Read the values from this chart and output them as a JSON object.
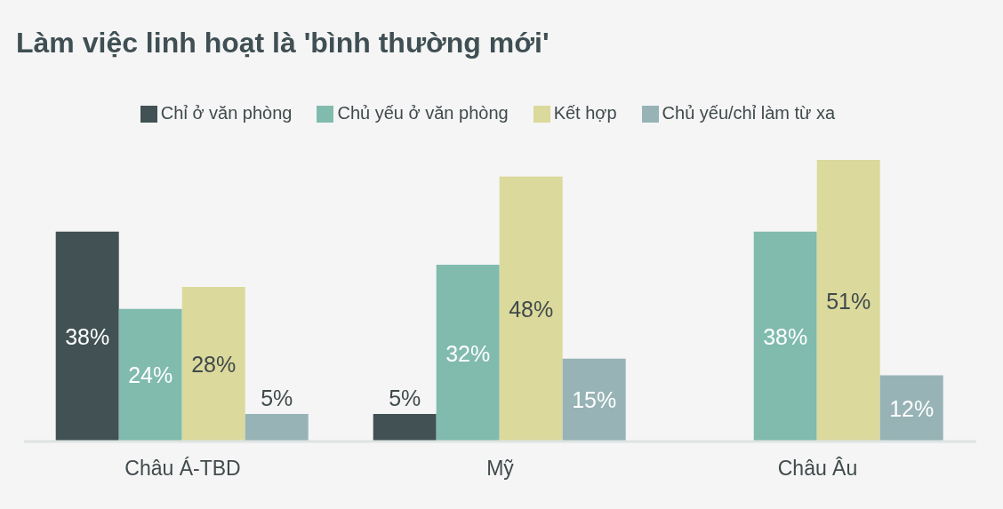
{
  "chart_data": {
    "type": "bar",
    "title": "Làm việc linh hoạt là 'bình thường mới'",
    "categories": [
      "Châu Á-TBD",
      "Mỹ",
      "Châu Âu"
    ],
    "series": [
      {
        "name": "Chỉ ở văn phòng",
        "color": "#415154",
        "values": [
          38,
          5,
          null
        ],
        "value_labels": [
          "38%",
          "5%",
          null
        ]
      },
      {
        "name": "Chủ yếu ở văn phòng",
        "color": "#80bbae",
        "values": [
          24,
          32,
          38
        ],
        "value_labels": [
          "24%",
          "32%",
          "38%"
        ]
      },
      {
        "name": "Kết hợp",
        "color": "#dbd99b",
        "values": [
          28,
          48,
          51
        ],
        "value_labels": [
          "28%",
          "48%",
          "51%"
        ]
      },
      {
        "name": "Chủ yếu/chỉ làm từ xa",
        "color": "#97b3b6",
        "values": [
          5,
          15,
          12
        ],
        "value_labels": [
          "5%",
          "15%",
          "12%"
        ]
      }
    ],
    "legend": "top",
    "tick_labels": "x"
  }
}
